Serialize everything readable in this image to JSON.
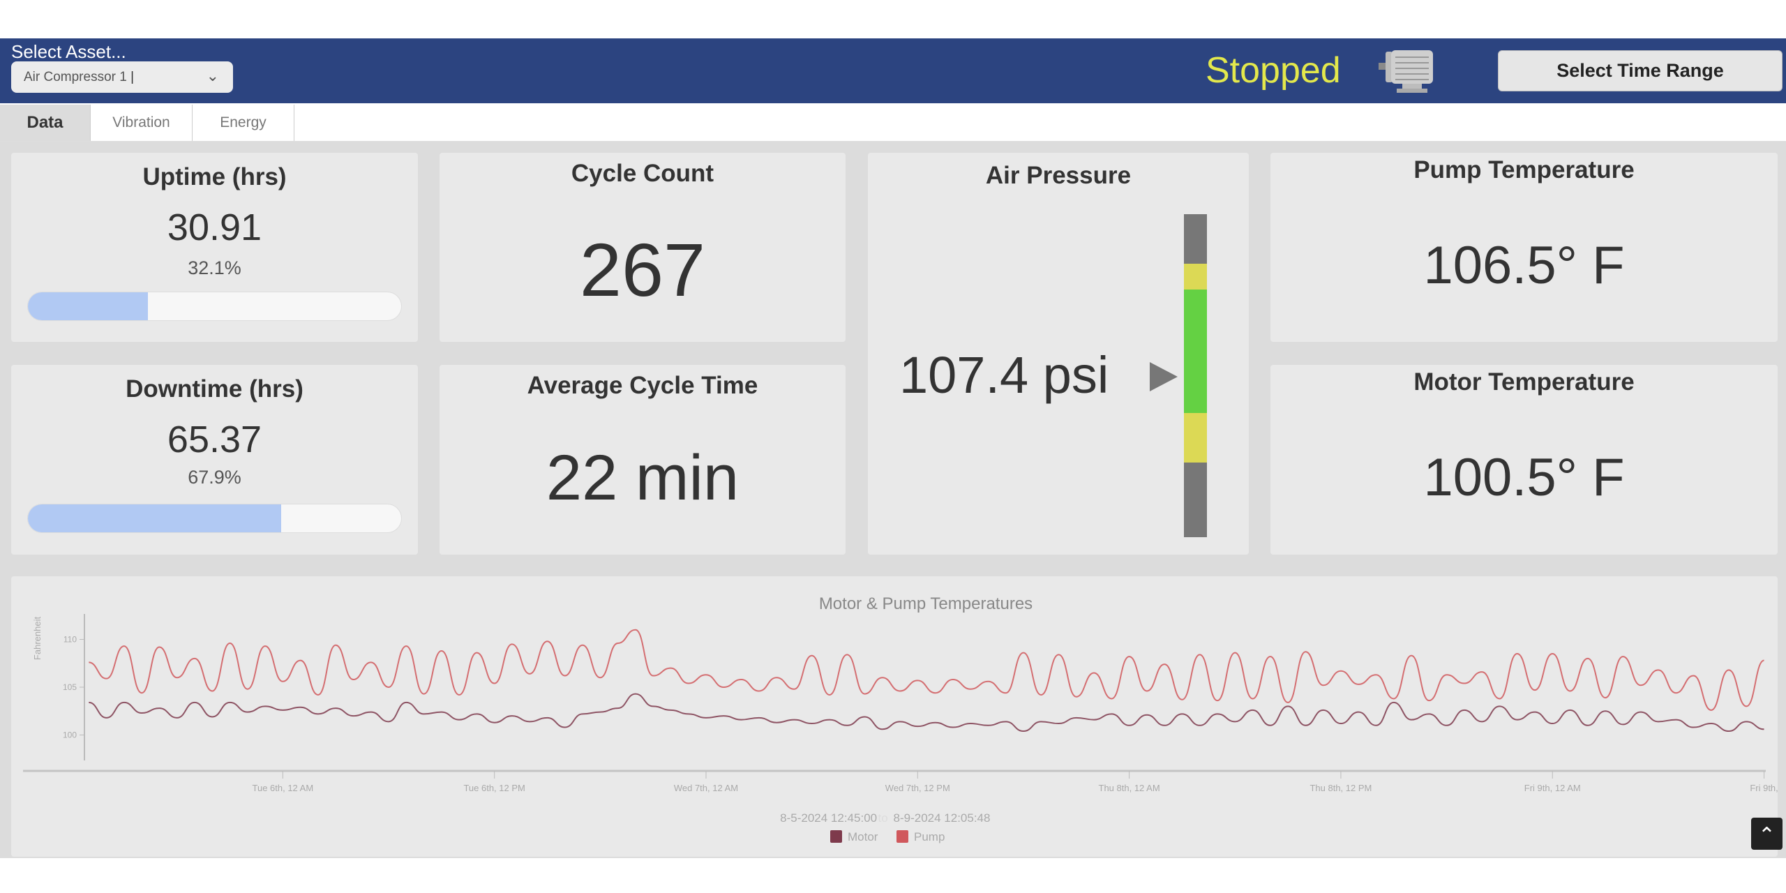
{
  "header": {
    "asset_label": "Select Asset...",
    "asset_value": "Air Compressor 1",
    "status": "Stopped",
    "status_color": "#e3e84c",
    "status_icon": "motor-icon",
    "time_range_button": "Select Time Range"
  },
  "tabs": [
    {
      "label": "Data",
      "active": true
    },
    {
      "label": "Vibration",
      "active": false
    },
    {
      "label": "Energy",
      "active": false
    }
  ],
  "cards": {
    "uptime": {
      "title": "Uptime (hrs)",
      "value": "30.91",
      "percent": "32.1%",
      "fill_percent": 32.1
    },
    "downtime": {
      "title": "Downtime (hrs)",
      "value": "65.37",
      "percent": "67.9%",
      "fill_percent": 67.9
    },
    "cycle_count": {
      "title": "Cycle Count",
      "value": "267"
    },
    "avg_cycle_time": {
      "title": "Average Cycle Time",
      "value": "22 min"
    },
    "air_pressure": {
      "title": "Air Pressure",
      "value": "107.4 psi",
      "gauge_segments": [
        "#777777",
        "#dcd955",
        "#64d143",
        "#dcd955",
        "#777777"
      ]
    },
    "pump_temp": {
      "title": "Pump Temperature",
      "value": "106.5° F"
    },
    "motor_temp": {
      "title": "Motor Temperature",
      "value": "100.5° F"
    }
  },
  "chart_data": {
    "type": "line",
    "title": "Motor & Pump Temperatures",
    "ylabel": "Fahrenheit",
    "xlabel": "",
    "ylim": [
      97,
      112
    ],
    "yticks": [
      100,
      105,
      110
    ],
    "xlim": [
      "2024-08-05T12:45:00",
      "2024-08-09T12:05:48"
    ],
    "xticks": [
      {
        "at": "2024-08-06T00:00",
        "label": "Tue 6th, 12 AM"
      },
      {
        "at": "2024-08-06T12:00",
        "label": "Tue 6th, 12 PM"
      },
      {
        "at": "2024-08-07T00:00",
        "label": "Wed 7th, 12 AM"
      },
      {
        "at": "2024-08-07T12:00",
        "label": "Wed 7th, 12 PM"
      },
      {
        "at": "2024-08-08T00:00",
        "label": "Thu 8th, 12 AM"
      },
      {
        "at": "2024-08-08T12:00",
        "label": "Thu 8th, 12 PM"
      },
      {
        "at": "2024-08-09T00:00",
        "label": "Fri 9th, 12 AM"
      },
      {
        "at": "2024-08-09T12:00",
        "label": "Fri 9th,"
      }
    ],
    "range_text": {
      "start": "8-5-2024   12:45:00",
      "sep": "to",
      "end": "8-9-2024   12:05:48"
    },
    "legend_position": "bottom",
    "grid": false,
    "x": [
      "2024-08-05T13:00",
      "2024-08-05T14:00",
      "2024-08-05T15:00",
      "2024-08-05T16:00",
      "2024-08-05T17:00",
      "2024-08-05T18:00",
      "2024-08-05T19:00",
      "2024-08-05T20:00",
      "2024-08-05T21:00",
      "2024-08-05T22:00",
      "2024-08-05T23:00",
      "2024-08-06T00:00",
      "2024-08-06T01:00",
      "2024-08-06T02:00",
      "2024-08-06T03:00",
      "2024-08-06T04:00",
      "2024-08-06T05:00",
      "2024-08-06T06:00",
      "2024-08-06T07:00",
      "2024-08-06T08:00",
      "2024-08-06T09:00",
      "2024-08-06T10:00",
      "2024-08-06T11:00",
      "2024-08-06T12:00",
      "2024-08-06T13:00",
      "2024-08-06T14:00",
      "2024-08-06T15:00",
      "2024-08-06T16:00",
      "2024-08-06T17:00",
      "2024-08-06T18:00",
      "2024-08-06T19:00",
      "2024-08-06T20:00",
      "2024-08-06T21:00",
      "2024-08-06T22:00",
      "2024-08-06T23:00",
      "2024-08-07T00:00",
      "2024-08-07T01:00",
      "2024-08-07T02:00",
      "2024-08-07T03:00",
      "2024-08-07T04:00",
      "2024-08-07T05:00",
      "2024-08-07T06:00",
      "2024-08-07T07:00",
      "2024-08-07T08:00",
      "2024-08-07T09:00",
      "2024-08-07T10:00",
      "2024-08-07T11:00",
      "2024-08-07T12:00",
      "2024-08-07T13:00",
      "2024-08-07T14:00",
      "2024-08-07T15:00",
      "2024-08-07T16:00",
      "2024-08-07T17:00",
      "2024-08-07T18:00",
      "2024-08-07T19:00",
      "2024-08-07T20:00",
      "2024-08-07T21:00",
      "2024-08-07T22:00",
      "2024-08-07T23:00",
      "2024-08-08T00:00",
      "2024-08-08T01:00",
      "2024-08-08T02:00",
      "2024-08-08T03:00",
      "2024-08-08T04:00",
      "2024-08-08T05:00",
      "2024-08-08T06:00",
      "2024-08-08T07:00",
      "2024-08-08T08:00",
      "2024-08-08T09:00",
      "2024-08-08T10:00",
      "2024-08-08T11:00",
      "2024-08-08T12:00",
      "2024-08-08T13:00",
      "2024-08-08T14:00",
      "2024-08-08T15:00",
      "2024-08-08T16:00",
      "2024-08-08T17:00",
      "2024-08-08T18:00",
      "2024-08-08T19:00",
      "2024-08-08T20:00",
      "2024-08-08T21:00",
      "2024-08-08T22:00",
      "2024-08-08T23:00",
      "2024-08-09T00:00",
      "2024-08-09T01:00",
      "2024-08-09T02:00",
      "2024-08-09T03:00",
      "2024-08-09T04:00",
      "2024-08-09T05:00",
      "2024-08-09T06:00",
      "2024-08-09T07:00",
      "2024-08-09T08:00",
      "2024-08-09T09:00",
      "2024-08-09T10:00",
      "2024-08-09T11:00",
      "2024-08-09T12:00"
    ],
    "series": [
      {
        "name": "Motor",
        "color": "#7e3a4c",
        "values": [
          103.4,
          101.8,
          103.4,
          102.3,
          102.8,
          101.8,
          103.4,
          101.9,
          103.4,
          102.4,
          103.0,
          102.6,
          102.9,
          102.2,
          102.8,
          102.0,
          102.4,
          101.4,
          103.4,
          102.2,
          102.4,
          101.6,
          102.2,
          101.3,
          102.0,
          101.4,
          101.8,
          100.8,
          102.2,
          102.4,
          102.8,
          104.3,
          103.0,
          102.6,
          102.2,
          101.8,
          102.0,
          101.6,
          101.8,
          101.3,
          101.6,
          101.2,
          101.6,
          101.0,
          101.9,
          100.6,
          101.4,
          100.9,
          101.3,
          100.8,
          101.2,
          101.0,
          101.4,
          100.4,
          101.4,
          101.2,
          101.8,
          101.6,
          102.2,
          101.0,
          102.1,
          101.0,
          102.2,
          101.0,
          102.2,
          101.4,
          102.6,
          101.0,
          103.0,
          101.0,
          102.6,
          101.2,
          102.4,
          101.0,
          103.4,
          101.6,
          102.2,
          101.0,
          102.6,
          101.4,
          103.0,
          101.6,
          102.4,
          101.2,
          102.6,
          101.0,
          102.5,
          101.1,
          102.4,
          101.4,
          101.6,
          100.8,
          101.2,
          100.4,
          101.4,
          100.6
        ]
      },
      {
        "name": "Pump",
        "color": "#d0585c",
        "values": [
          107.6,
          105.9,
          109.3,
          104.4,
          109.2,
          106.0,
          108.0,
          104.6,
          109.6,
          104.8,
          109.3,
          105.6,
          107.8,
          104.2,
          109.4,
          105.8,
          107.6,
          105.0,
          109.3,
          104.3,
          108.8,
          104.2,
          108.6,
          105.4,
          109.5,
          106.4,
          109.8,
          106.2,
          109.4,
          106.0,
          109.6,
          111.0,
          106.2,
          107.0,
          105.4,
          106.3,
          105.0,
          105.8,
          104.6,
          106.0,
          104.8,
          108.3,
          104.2,
          108.4,
          104.3,
          106.0,
          104.6,
          105.7,
          104.4,
          105.8,
          104.8,
          105.6,
          104.4,
          108.6,
          104.2,
          108.4,
          104.0,
          106.5,
          103.8,
          108.2,
          104.6,
          107.4,
          103.7,
          108.4,
          103.6,
          108.6,
          103.8,
          108.2,
          103.4,
          108.7,
          105.2,
          106.7,
          105.3,
          106.3,
          103.8,
          108.3,
          103.6,
          106.3,
          105.4,
          106.6,
          103.8,
          108.5,
          104.7,
          108.5,
          104.6,
          108.0,
          103.9,
          108.2,
          105.2,
          106.8,
          104.4,
          106.2,
          102.6,
          106.8,
          103.0,
          107.8
        ]
      }
    ]
  }
}
